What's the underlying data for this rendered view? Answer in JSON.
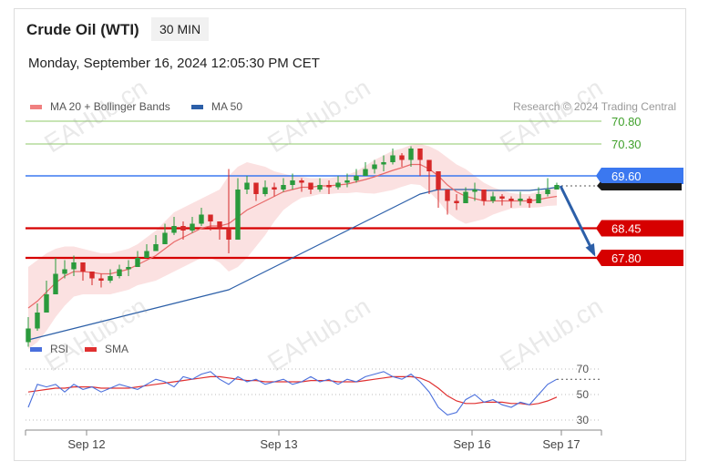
{
  "header": {
    "instrument": "Crude Oil (WTI)",
    "timeframe": "30 MIN",
    "datetime": "Monday, September 16, 2024 12:05:30 PM CET",
    "credit": "Research © 2024 Trading Central"
  },
  "watermark": "EAHub.cn",
  "chart_data": [
    {
      "type": "line",
      "title": "Crude Oil (WTI)",
      "legend": [
        {
          "name": "MA 20 + Bollinger Bands",
          "color": "#f08080"
        },
        {
          "name": "MA 50",
          "color": "#2c5fa8"
        }
      ],
      "x_ticks": [
        "Sep 12",
        "Sep 13",
        "Sep 16",
        "Sep 17"
      ],
      "y_range": [
        65.8,
        71.2
      ],
      "last_price": 69.38,
      "levels": [
        {
          "label": "70.80",
          "value": 70.8,
          "color": "#8fc86a",
          "kind": "resistance"
        },
        {
          "label": "70.30",
          "value": 70.3,
          "color": "#8fc86a",
          "kind": "resistance"
        },
        {
          "label": "69.60",
          "value": 69.6,
          "color": "#3b78f0",
          "kind": "pivot"
        },
        {
          "label": "68.45",
          "value": 68.45,
          "color": "#d60000",
          "kind": "support"
        },
        {
          "label": "67.80",
          "value": 67.8,
          "color": "#d60000",
          "kind": "support"
        }
      ],
      "price_close": [
        66.25,
        66.6,
        67.0,
        67.45,
        67.55,
        67.7,
        67.5,
        67.35,
        67.3,
        67.4,
        67.55,
        67.6,
        67.8,
        67.95,
        68.1,
        68.35,
        68.5,
        68.4,
        68.55,
        68.75,
        68.6,
        68.45,
        68.2,
        69.3,
        69.45,
        69.2,
        69.35,
        69.3,
        69.4,
        69.5,
        69.45,
        69.3,
        69.4,
        69.35,
        69.45,
        69.5,
        69.6,
        69.75,
        69.85,
        69.9,
        70.05,
        69.95,
        70.2,
        69.95,
        69.7,
        69.3,
        69.05,
        69.0,
        69.25,
        69.3,
        69.05,
        69.15,
        69.1,
        69.05,
        69.1,
        69.0,
        69.2,
        69.3,
        69.4
      ],
      "price_high": [
        66.5,
        66.8,
        67.3,
        67.8,
        67.75,
        67.85,
        67.65,
        67.5,
        67.45,
        67.55,
        67.65,
        67.75,
        67.95,
        68.1,
        68.3,
        68.55,
        68.7,
        68.6,
        68.7,
        68.9,
        68.75,
        68.6,
        69.75,
        69.55,
        69.6,
        69.4,
        69.5,
        69.45,
        69.55,
        69.65,
        69.55,
        69.45,
        69.55,
        69.5,
        69.6,
        69.65,
        69.75,
        69.9,
        69.95,
        70.05,
        70.2,
        70.1,
        70.25,
        70.05,
        69.8,
        69.45,
        69.2,
        69.2,
        69.35,
        69.45,
        69.2,
        69.25,
        69.2,
        69.15,
        69.25,
        69.15,
        69.35,
        69.55,
        69.45
      ],
      "price_low": [
        65.85,
        66.2,
        66.7,
        67.2,
        67.35,
        67.4,
        67.3,
        67.2,
        67.15,
        67.25,
        67.35,
        67.4,
        67.6,
        67.8,
        67.95,
        68.1,
        68.3,
        68.2,
        68.35,
        68.5,
        68.4,
        68.2,
        67.9,
        69.1,
        69.2,
        69.05,
        69.15,
        69.15,
        69.25,
        69.3,
        69.25,
        69.2,
        69.25,
        69.2,
        69.3,
        69.35,
        69.45,
        69.6,
        69.65,
        69.7,
        69.85,
        69.8,
        69.8,
        69.6,
        69.2,
        68.9,
        68.75,
        68.85,
        69.0,
        69.05,
        68.95,
        69.0,
        68.95,
        68.9,
        68.95,
        68.9,
        69.05,
        69.15,
        69.3
      ],
      "ma20": [
        66.7,
        66.85,
        67.05,
        67.25,
        67.4,
        67.5,
        67.5,
        67.48,
        67.45,
        67.45,
        67.5,
        67.55,
        67.65,
        67.75,
        67.85,
        68.0,
        68.15,
        68.25,
        68.35,
        68.45,
        68.5,
        68.5,
        68.55,
        68.7,
        68.85,
        68.95,
        69.05,
        69.15,
        69.25,
        69.3,
        69.35,
        69.35,
        69.38,
        69.38,
        69.4,
        69.42,
        69.47,
        69.52,
        69.58,
        69.65,
        69.72,
        69.78,
        69.85,
        69.85,
        69.75,
        69.6,
        69.4,
        69.25,
        69.15,
        69.1,
        69.05,
        69.05,
        69.05,
        69.05,
        69.05,
        69.05,
        69.08,
        69.12,
        69.15
      ],
      "bb_upper": [
        67.6,
        67.75,
        67.9,
        68.0,
        68.05,
        68.05,
        68.0,
        67.95,
        67.9,
        67.9,
        67.95,
        68.0,
        68.1,
        68.25,
        68.4,
        68.6,
        68.8,
        68.9,
        69.0,
        69.1,
        69.2,
        69.3,
        69.6,
        69.8,
        69.9,
        69.85,
        69.8,
        69.7,
        69.65,
        69.6,
        69.58,
        69.55,
        69.55,
        69.55,
        69.58,
        69.62,
        69.7,
        69.82,
        69.95,
        70.05,
        70.15,
        70.2,
        70.28,
        70.3,
        70.25,
        70.15,
        70.0,
        69.85,
        69.75,
        69.6,
        69.45,
        69.35,
        69.28,
        69.22,
        69.2,
        69.2,
        69.25,
        69.3,
        69.35
      ],
      "bb_lower": [
        65.8,
        65.95,
        66.2,
        66.5,
        66.75,
        66.95,
        67.0,
        67.0,
        67.0,
        67.0,
        67.05,
        67.1,
        67.2,
        67.25,
        67.3,
        67.4,
        67.5,
        67.6,
        67.7,
        67.8,
        67.8,
        67.7,
        67.5,
        67.6,
        67.8,
        68.05,
        68.3,
        68.6,
        68.85,
        69.0,
        69.12,
        69.15,
        69.2,
        69.2,
        69.22,
        69.22,
        69.24,
        69.22,
        69.21,
        69.25,
        69.29,
        69.36,
        69.42,
        69.4,
        69.25,
        69.05,
        68.8,
        68.65,
        68.55,
        68.6,
        68.65,
        68.75,
        68.82,
        68.88,
        68.9,
        68.9,
        68.91,
        68.94,
        68.95
      ],
      "ma50": [
        66.0,
        66.05,
        66.1,
        66.15,
        66.2,
        66.25,
        66.3,
        66.35,
        66.4,
        66.45,
        66.5,
        66.55,
        66.6,
        66.65,
        66.7,
        66.75,
        66.8,
        66.85,
        66.9,
        66.95,
        67.0,
        67.05,
        67.1,
        67.2,
        67.3,
        67.4,
        67.5,
        67.6,
        67.7,
        67.8,
        67.9,
        68.0,
        68.1,
        68.2,
        68.3,
        68.4,
        68.5,
        68.6,
        68.7,
        68.8,
        68.9,
        69.0,
        69.1,
        69.2,
        69.25,
        69.3,
        69.3,
        69.3,
        69.3,
        69.3,
        69.28,
        69.28,
        69.28,
        69.28,
        69.28,
        69.28,
        69.3,
        69.32,
        69.35
      ],
      "projection_arrow": {
        "from": 69.38,
        "to": 67.8
      }
    },
    {
      "type": "line",
      "legend": [
        {
          "name": "RSI",
          "color": "#4a6fdc"
        },
        {
          "name": "SMA",
          "color": "#e03030"
        }
      ],
      "y_ticks": [
        70,
        50,
        30
      ],
      "y_range": [
        25,
        75
      ],
      "x_ticks": [
        "Sep 12",
        "Sep 13",
        "Sep 16",
        "Sep 17"
      ],
      "rsi": [
        40,
        58,
        56,
        58,
        52,
        58,
        54,
        56,
        52,
        55,
        58,
        56,
        54,
        58,
        62,
        60,
        56,
        64,
        62,
        66,
        68,
        62,
        58,
        64,
        60,
        62,
        58,
        60,
        62,
        58,
        60,
        64,
        60,
        62,
        58,
        62,
        60,
        64,
        66,
        68,
        64,
        62,
        66,
        60,
        52,
        40,
        34,
        36,
        46,
        50,
        44,
        46,
        42,
        40,
        44,
        42,
        50,
        58,
        62
      ],
      "sma": [
        52,
        53,
        54,
        55,
        55,
        56,
        56,
        56,
        55,
        55,
        55,
        55,
        56,
        57,
        58,
        59,
        60,
        61,
        62,
        63,
        64,
        64,
        63,
        62,
        61,
        61,
        60,
        60,
        60,
        60,
        60,
        61,
        61,
        61,
        60,
        60,
        60,
        61,
        62,
        63,
        64,
        64,
        64,
        63,
        60,
        55,
        49,
        45,
        43,
        43,
        44,
        44,
        44,
        43,
        43,
        42,
        43,
        45,
        48
      ]
    }
  ]
}
